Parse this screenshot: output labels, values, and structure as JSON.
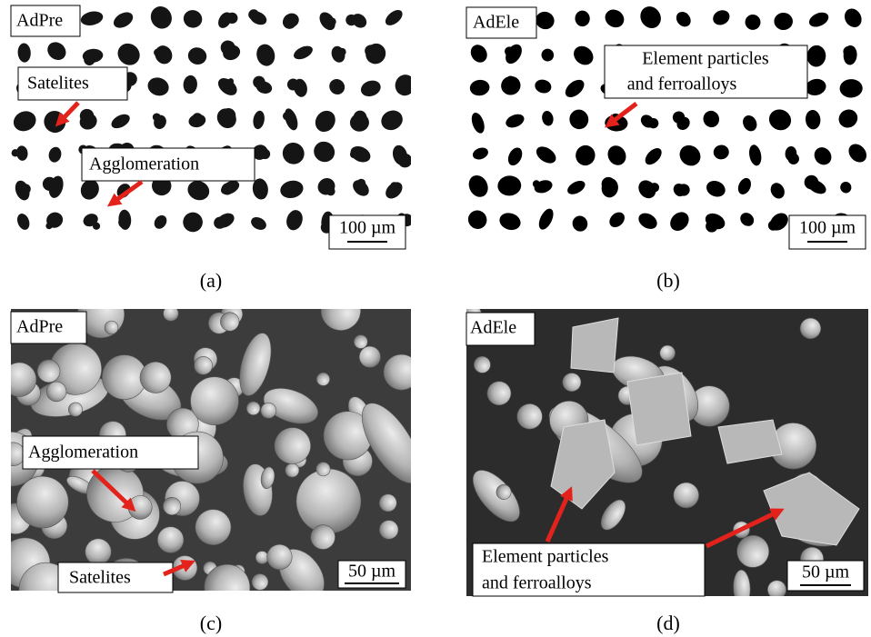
{
  "panels": [
    {
      "label": "AdPre",
      "caption": "(a)",
      "scale_bar": "100 µm",
      "annotations": [
        {
          "lines": [
            "Satelites"
          ]
        },
        {
          "lines": [
            "Agglomeration"
          ]
        }
      ]
    },
    {
      "label": "AdEle",
      "caption": "(b)",
      "scale_bar": "100 µm",
      "annotations": [
        {
          "lines": [
            "Element particles",
            "and ferroalloys"
          ]
        }
      ]
    },
    {
      "label": "AdPre",
      "caption": "(c)",
      "scale_bar": "50 µm",
      "annotations": [
        {
          "lines": [
            "Agglomeration"
          ]
        },
        {
          "lines": [
            "Satelites"
          ]
        }
      ]
    },
    {
      "label": "AdEle",
      "caption": "(d)",
      "scale_bar": "50 µm",
      "annotations": [
        {
          "lines": [
            "Element particles",
            "and ferroalloys"
          ]
        }
      ]
    }
  ]
}
